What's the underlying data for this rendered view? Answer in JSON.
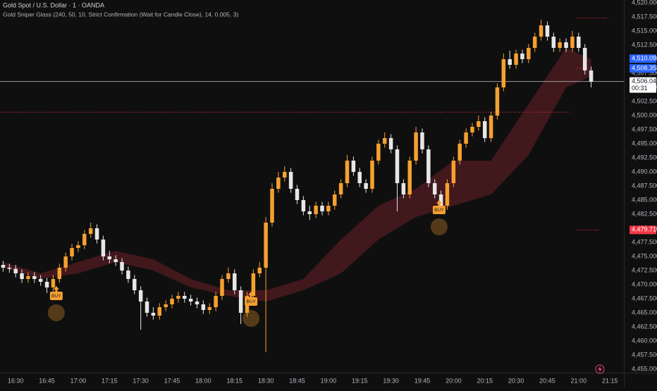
{
  "chart_data": {
    "type": "candlestick",
    "title": "Gold Spot / U.S. Dollar · 1 · OANDA",
    "subtitle": "Gold Sniper Glass (240, 50, 10, Strict Confirmation (Wait for Candle Close), 14, 0.005, 3)",
    "xlim": [
      982.5,
      1281.7
    ],
    "ylim": [
      4454.5,
      4520.5
    ],
    "grid": true,
    "up_color": "#f5a030",
    "down_color": "#e6e6e6",
    "x": [
      984,
      987,
      990,
      993,
      996,
      999,
      1002,
      1005,
      1008,
      1011,
      1014,
      1017,
      1020,
      1023,
      1026,
      1029,
      1032,
      1035,
      1038,
      1041,
      1044,
      1047,
      1050,
      1053,
      1056,
      1059,
      1062,
      1065,
      1068,
      1071,
      1074,
      1077,
      1080,
      1083,
      1086,
      1089,
      1092,
      1095,
      1098,
      1101,
      1104,
      1107,
      1110,
      1113,
      1116,
      1119,
      1122,
      1125,
      1128,
      1131,
      1134,
      1137,
      1140,
      1143,
      1146,
      1149,
      1152,
      1155,
      1158,
      1161,
      1164,
      1167,
      1170,
      1173,
      1176,
      1179,
      1182,
      1185,
      1188,
      1191,
      1194,
      1197,
      1200,
      1203,
      1206,
      1209,
      1212,
      1215,
      1218,
      1221,
      1224,
      1227,
      1230,
      1233,
      1236,
      1239,
      1242,
      1245,
      1248,
      1251,
      1254,
      1257,
      1260,
      1263,
      1266
    ],
    "ohlc": [
      [
        4473.5,
        4474.2,
        4472.3,
        4473
      ],
      [
        4473,
        4473.7,
        4472.1,
        4472.8
      ],
      [
        4472.8,
        4473.5,
        4471.3,
        4472
      ],
      [
        4472,
        4472.7,
        4470.3,
        4471
      ],
      [
        4471,
        4472.2,
        4470.3,
        4471.5
      ],
      [
        4471.5,
        4472.2,
        4470.3,
        4471
      ],
      [
        4471,
        4471.7,
        4469.8,
        4470.5
      ],
      [
        4470.5,
        4471.2,
        4468.5,
        4469.5
      ],
      [
        4469.5,
        4471.7,
        4468.8,
        4471
      ],
      [
        4471,
        4473.7,
        4470.3,
        4473
      ],
      [
        4473,
        4475.7,
        4472.3,
        4475
      ],
      [
        4475,
        4477.2,
        4474.3,
        4476.5
      ],
      [
        4476.5,
        4477.7,
        4475.8,
        4477
      ],
      [
        4477,
        4479.7,
        4476.3,
        4479
      ],
      [
        4479,
        4481,
        4478.3,
        4480
      ],
      [
        4480,
        4480.7,
        4477.3,
        4478
      ],
      [
        4478,
        4478.7,
        4474.3,
        4475
      ],
      [
        4475,
        4476,
        4473.8,
        4474.5
      ],
      [
        4474.5,
        4475.2,
        4473.3,
        4474
      ],
      [
        4474,
        4474.7,
        4471.8,
        4472.5
      ],
      [
        4472.5,
        4473.2,
        4470.3,
        4471
      ],
      [
        4471,
        4471.7,
        4468.3,
        4469
      ],
      [
        4469,
        4469.7,
        4462,
        4467
      ],
      [
        4467,
        4467.7,
        4464.3,
        4465
      ],
      [
        4465,
        4466,
        4463.8,
        4464.5
      ],
      [
        4464.5,
        4466.7,
        4463.8,
        4466
      ],
      [
        4466,
        4467.2,
        4465.3,
        4466.5
      ],
      [
        4466.5,
        4468.2,
        4465.8,
        4467.5
      ],
      [
        4467.5,
        4468.7,
        4466.8,
        4468
      ],
      [
        4468,
        4468.7,
        4466.8,
        4467.5
      ],
      [
        4467.5,
        4468.2,
        4466.3,
        4467
      ],
      [
        4467,
        4467.7,
        4465.8,
        4466.5
      ],
      [
        4466.5,
        4467.2,
        4464.8,
        4465.5
      ],
      [
        4465.5,
        4466.7,
        4464.8,
        4466
      ],
      [
        4466,
        4468.7,
        4465.3,
        4468
      ],
      [
        4468,
        4471.7,
        4467.3,
        4471
      ],
      [
        4471,
        4473,
        4470.3,
        4472
      ],
      [
        4472,
        4472.7,
        4468.3,
        4469
      ],
      [
        4469,
        4469.7,
        4463,
        4465
      ],
      [
        4465,
        4468.7,
        4464.3,
        4468
      ],
      [
        4468,
        4472.7,
        4467.3,
        4472
      ],
      [
        4472,
        4474,
        4471.3,
        4473
      ],
      [
        4473,
        4482,
        4458,
        4481
      ],
      [
        4481,
        4488,
        4480.3,
        4487
      ],
      [
        4487,
        4490,
        4486.3,
        4489
      ],
      [
        4489,
        4491,
        4488.3,
        4490
      ],
      [
        4490,
        4490.7,
        4486.3,
        4487
      ],
      [
        4487,
        4487.7,
        4484.3,
        4485
      ],
      [
        4485,
        4485.7,
        4482.3,
        4483
      ],
      [
        4483,
        4484,
        4481.5,
        4482.5
      ],
      [
        4482.5,
        4484.7,
        4481.8,
        4484
      ],
      [
        4484,
        4484.7,
        4482.3,
        4483
      ],
      [
        4483,
        4484.7,
        4482.3,
        4484
      ],
      [
        4484,
        4486.7,
        4483.3,
        4486
      ],
      [
        4486,
        4488.7,
        4485.3,
        4488
      ],
      [
        4488,
        4493,
        4487.3,
        4492
      ],
      [
        4492,
        4492.7,
        4489.3,
        4490
      ],
      [
        4490,
        4490.7,
        4487.3,
        4488
      ],
      [
        4488,
        4488.7,
        4486.3,
        4487
      ],
      [
        4487,
        4492.7,
        4486.3,
        4492
      ],
      [
        4492,
        4495.7,
        4491.3,
        4495
      ],
      [
        4495,
        4497,
        4494.3,
        4496
      ],
      [
        4496,
        4496.7,
        4493.3,
        4494
      ],
      [
        4494,
        4494.7,
        4483,
        4488
      ],
      [
        4488,
        4488.7,
        4485.3,
        4486
      ],
      [
        4486,
        4492.7,
        4485.3,
        4492
      ],
      [
        4492,
        4498,
        4491.3,
        4497
      ],
      [
        4497,
        4497.7,
        4493.3,
        4494
      ],
      [
        4494,
        4494.7,
        4487.3,
        4488
      ],
      [
        4488,
        4488.7,
        4485.3,
        4486
      ],
      [
        4486,
        4486.7,
        4482.5,
        4484
      ],
      [
        4484,
        4488.7,
        4483.3,
        4488
      ],
      [
        4488,
        4492.7,
        4487.3,
        4492
      ],
      [
        4492,
        4495.7,
        4491.3,
        4495
      ],
      [
        4495,
        4497.7,
        4494.3,
        4497
      ],
      [
        4497,
        4498.7,
        4496.3,
        4498
      ],
      [
        4498,
        4500,
        4497.3,
        4499
      ],
      [
        4499,
        4499.7,
        4495.3,
        4496
      ],
      [
        4496,
        4500.7,
        4495.3,
        4500
      ],
      [
        4500,
        4505.7,
        4499.3,
        4505
      ],
      [
        4505,
        4511,
        4504.3,
        4510
      ],
      [
        4510,
        4511.5,
        4508.3,
        4509
      ],
      [
        4509,
        4511.7,
        4508.3,
        4511
      ],
      [
        4511,
        4511.7,
        4509.3,
        4510
      ],
      [
        4510,
        4512.7,
        4509.3,
        4512
      ],
      [
        4512,
        4514.7,
        4511.3,
        4514
      ],
      [
        4514,
        4517,
        4513.3,
        4516
      ],
      [
        4516,
        4516.7,
        4513.3,
        4514
      ],
      [
        4514,
        4514.7,
        4511.3,
        4512
      ],
      [
        4512,
        4513.7,
        4511.3,
        4513
      ],
      [
        4513,
        4513.7,
        4511.3,
        4512
      ],
      [
        4512,
        4515,
        4511.3,
        4514
      ],
      [
        4514,
        4514.7,
        4511.3,
        4512
      ],
      [
        4512,
        4512.7,
        4507.3,
        4508
      ],
      [
        4508,
        4508.7,
        4505,
        4506
      ]
    ],
    "band": {
      "color": "#6b2128",
      "x": [
        984,
        1002,
        1020,
        1038,
        1056,
        1074,
        1092,
        1110,
        1128,
        1146,
        1164,
        1182,
        1200,
        1218,
        1236,
        1254,
        1266
      ],
      "upper": [
        4474,
        4472,
        4474,
        4476,
        4474.5,
        4471,
        4469,
        4469,
        4471,
        4478,
        4484,
        4487,
        4492,
        4492,
        4502,
        4512,
        4510
      ],
      "lower": [
        4473,
        4471,
        4472,
        4474,
        4472.5,
        4469.5,
        4468,
        4467,
        4469,
        4472,
        4478,
        4482,
        4484,
        4486,
        4493,
        4505,
        4507
      ]
    },
    "signals": [
      {
        "label": "BUY",
        "x": 1009.5,
        "price": 4468
      },
      {
        "label": "BUY",
        "x": 1102.9,
        "price": 4467
      },
      {
        "label": "BUY",
        "x": 1193.1,
        "price": 4483.25
      }
    ],
    "levels": [
      {
        "value": 4500.6,
        "x": [
          982.5,
          1256
        ],
        "color": "#b22833",
        "dash": "2 2"
      },
      {
        "value": 4479.71,
        "x": [
          1259,
          1270
        ],
        "color": "#b22833",
        "dash": "2 2"
      },
      {
        "value": 4517.3,
        "x": [
          1259,
          1274
        ],
        "color": "#b22833",
        "dash": "2 2"
      },
      {
        "value": 4508.4,
        "x": [
          1259,
          1265
        ],
        "color": "#b22833",
        "dash": "2 2"
      },
      {
        "value": 4506.04,
        "x": [
          982.5,
          1281.7
        ],
        "color": "#9a9a9a",
        "dash": "none"
      }
    ],
    "price_labels": [
      {
        "label": "4,510.093",
        "value": 4510.093,
        "color": "#2962ff",
        "text_color": "#ffffff"
      },
      {
        "label": "4,508.358",
        "value": 4508.358,
        "color": "#2962ff",
        "text_color": "#ffffff"
      },
      {
        "label": "4,506.040",
        "value": 4506.04,
        "color": "#ffffff",
        "text_color": "#131722",
        "countdown": "00:31"
      },
      {
        "label": "4,479.710",
        "value": 4479.71,
        "color": "#f23645",
        "text_color": "#ffffff"
      }
    ],
    "yticks": [
      {
        "value": 4455,
        "label": "4,455.000"
      },
      {
        "value": 4457.5,
        "label": "4,457.500"
      },
      {
        "value": 4460,
        "label": "4,460.000"
      },
      {
        "value": 4462.5,
        "label": "4,462.500"
      },
      {
        "value": 4465,
        "label": "4,465.000"
      },
      {
        "value": 4467.5,
        "label": "4,467.500"
      },
      {
        "value": 4470,
        "label": "4,470.000"
      },
      {
        "value": 4472.5,
        "label": "4,472.500"
      },
      {
        "value": 4475,
        "label": "4,475.000"
      },
      {
        "value": 4477.5,
        "label": "4,477.500"
      },
      {
        "value": 4480,
        "label": "4,480.000"
      },
      {
        "value": 4482.5,
        "label": "4,482.500"
      },
      {
        "value": 4485,
        "label": "4,485.000"
      },
      {
        "value": 4487.5,
        "label": "4,487.500"
      },
      {
        "value": 4490,
        "label": "4,490.000"
      },
      {
        "value": 4492.5,
        "label": "4,492.500"
      },
      {
        "value": 4495,
        "label": "4,495.000"
      },
      {
        "value": 4497.5,
        "label": "4,497.500"
      },
      {
        "value": 4500,
        "label": "4,500.000"
      },
      {
        "value": 4502.5,
        "label": "4,502.500"
      },
      {
        "value": 4505,
        "label": "4,505.000"
      },
      {
        "value": 4507.5,
        "label": "4,507.500"
      },
      {
        "value": 4510,
        "label": "4,510.000"
      },
      {
        "value": 4512.5,
        "label": "4,512.500"
      },
      {
        "value": 4515,
        "label": "4,515.000"
      },
      {
        "value": 4517.5,
        "label": "4,517.500"
      },
      {
        "value": 4520,
        "label": "4,520.000"
      }
    ],
    "xticks": [
      {
        "value": 990,
        "label": "16:30"
      },
      {
        "value": 1005,
        "label": "16:45"
      },
      {
        "value": 1020,
        "label": "17:00"
      },
      {
        "value": 1035,
        "label": "17:15"
      },
      {
        "value": 1050,
        "label": "17:30"
      },
      {
        "value": 1065,
        "label": "17:45"
      },
      {
        "value": 1080,
        "label": "18:00"
      },
      {
        "value": 1095,
        "label": "18:15"
      },
      {
        "value": 1110,
        "label": "18:30"
      },
      {
        "value": 1125,
        "label": "18:45"
      },
      {
        "value": 1140,
        "label": "19:00"
      },
      {
        "value": 1155,
        "label": "19:15"
      },
      {
        "value": 1170,
        "label": "19:30"
      },
      {
        "value": 1185,
        "label": "19:45"
      },
      {
        "value": 1200,
        "label": "20:00"
      },
      {
        "value": 1215,
        "label": "20:15"
      },
      {
        "value": 1230,
        "label": "20:30"
      },
      {
        "value": 1245,
        "label": "20:45"
      },
      {
        "value": 1260,
        "label": "21:00"
      },
      {
        "value": 1275,
        "label": "21:15"
      }
    ]
  }
}
